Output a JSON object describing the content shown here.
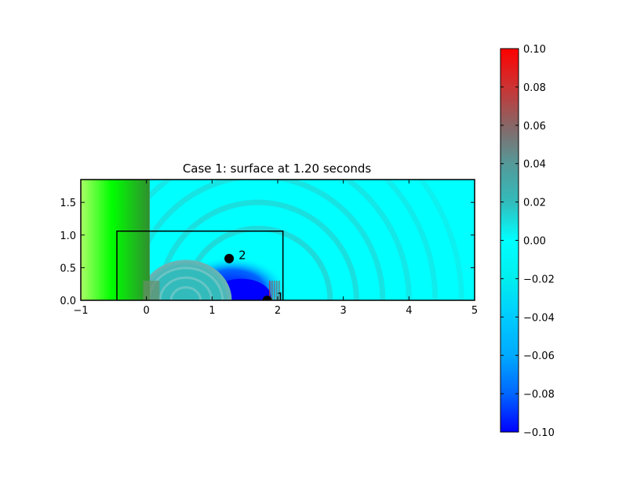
{
  "chart_data": [
    {
      "type": "heatmap",
      "title": "Case 1: surface at 1.20 seconds",
      "xlabel": "",
      "ylabel": "",
      "xlim": [
        -1,
        5
      ],
      "ylim": [
        0,
        1.85
      ],
      "xticks": [
        -1,
        0,
        1,
        2,
        3,
        4,
        5
      ],
      "xtick_labels": [
        "−1",
        "0",
        "1",
        "2",
        "3",
        "4",
        "5"
      ],
      "yticks": [
        0.0,
        0.5,
        1.0,
        1.5
      ],
      "ytick_labels": [
        "0.0",
        "0.5",
        "1.0",
        "1.5"
      ],
      "grid": false,
      "regions": [
        {
          "kind": "land",
          "x": [
            -1,
            0.05
          ],
          "y": [
            0,
            1.85
          ],
          "colors": [
            "#aaff66",
            "#00ff00",
            "#2f8f2f"
          ]
        },
        {
          "kind": "surface",
          "x": [
            0.05,
            5
          ],
          "y": [
            0,
            1.85
          ],
          "value": 0.005
        },
        {
          "kind": "depression",
          "center": [
            1.3,
            0.15
          ],
          "radius": [
            0.85,
            0.5
          ],
          "value": -0.1
        },
        {
          "kind": "positive-band",
          "x": [
            1.87,
            2.05
          ],
          "y": [
            0,
            0.3
          ],
          "value": 0.07
        },
        {
          "kind": "submerged-bump",
          "center": [
            0.6,
            0.0
          ],
          "radius": [
            0.7,
            0.62
          ],
          "value": 0.02
        }
      ],
      "rings": {
        "center": [
          1.7,
          0.0
        ],
        "radii": [
          1.1,
          1.5,
          1.9,
          2.3,
          2.7,
          3.1
        ],
        "value": 0.03
      },
      "annotation_box": {
        "x": [
          -0.45,
          2.08
        ],
        "y": [
          0,
          1.06
        ],
        "color": "#000000"
      },
      "gauges": [
        {
          "id": "1",
          "label": "1",
          "x": 1.84,
          "y": 0.0
        },
        {
          "id": "2",
          "label": "2",
          "x": 1.26,
          "y": 0.64
        }
      ]
    },
    {
      "type": "colorbar",
      "vmin": -0.1,
      "vmax": 0.1,
      "ticks": [
        0.1,
        0.08,
        0.06,
        0.04,
        0.02,
        0.0,
        -0.02,
        -0.04,
        -0.06,
        -0.08,
        -0.1
      ],
      "tick_labels": [
        "0.10",
        "0.08",
        "0.06",
        "0.04",
        "0.02",
        "0.00",
        "−0.02",
        "−0.04",
        "−0.06",
        "−0.08",
        "−0.10"
      ],
      "colors": [
        "#0000ff",
        "#0066ff",
        "#00aaff",
        "#00ccff",
        "#00eeee",
        "#00ffff",
        "#33bbbb",
        "#559999",
        "#886666",
        "#cc3333",
        "#ff0000"
      ]
    }
  ]
}
